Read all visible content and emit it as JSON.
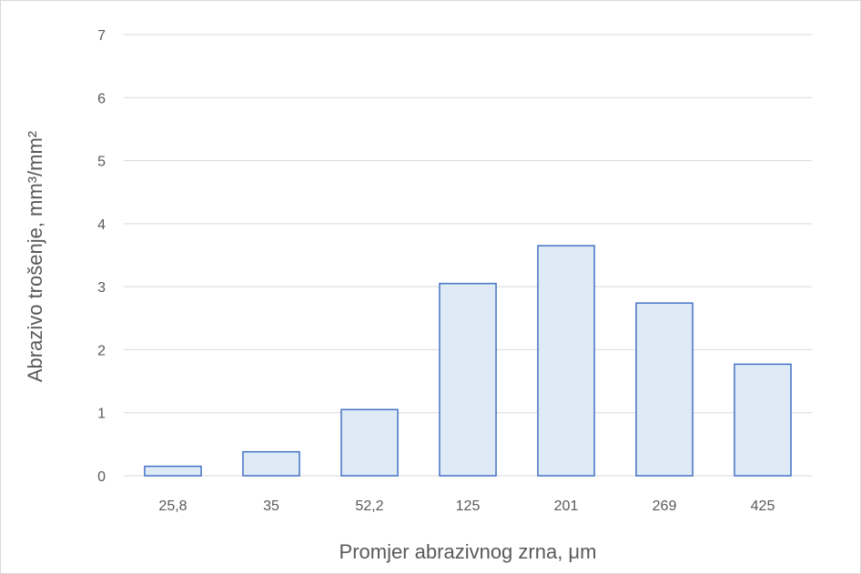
{
  "chart_data": {
    "type": "bar",
    "categories": [
      "25,8",
      "35",
      "52,2",
      "125",
      "201",
      "269",
      "425"
    ],
    "values": [
      0.15,
      0.38,
      1.05,
      3.05,
      3.65,
      2.74,
      1.77
    ],
    "title": "",
    "xlabel": "Promjer abrazivnog zrna, μm",
    "ylabel": "Abrazivo trošenje, mm³/mm²",
    "ylim": [
      0,
      7
    ],
    "yticks": [
      "0",
      "1",
      "2",
      "3",
      "4",
      "5",
      "6",
      "7"
    ],
    "grid": true,
    "legend": "none",
    "colors": {
      "bar_fill": "#deebf7",
      "bar_stroke": "#4472c4",
      "grid": "#d9d9d9",
      "text": "#595959"
    }
  }
}
